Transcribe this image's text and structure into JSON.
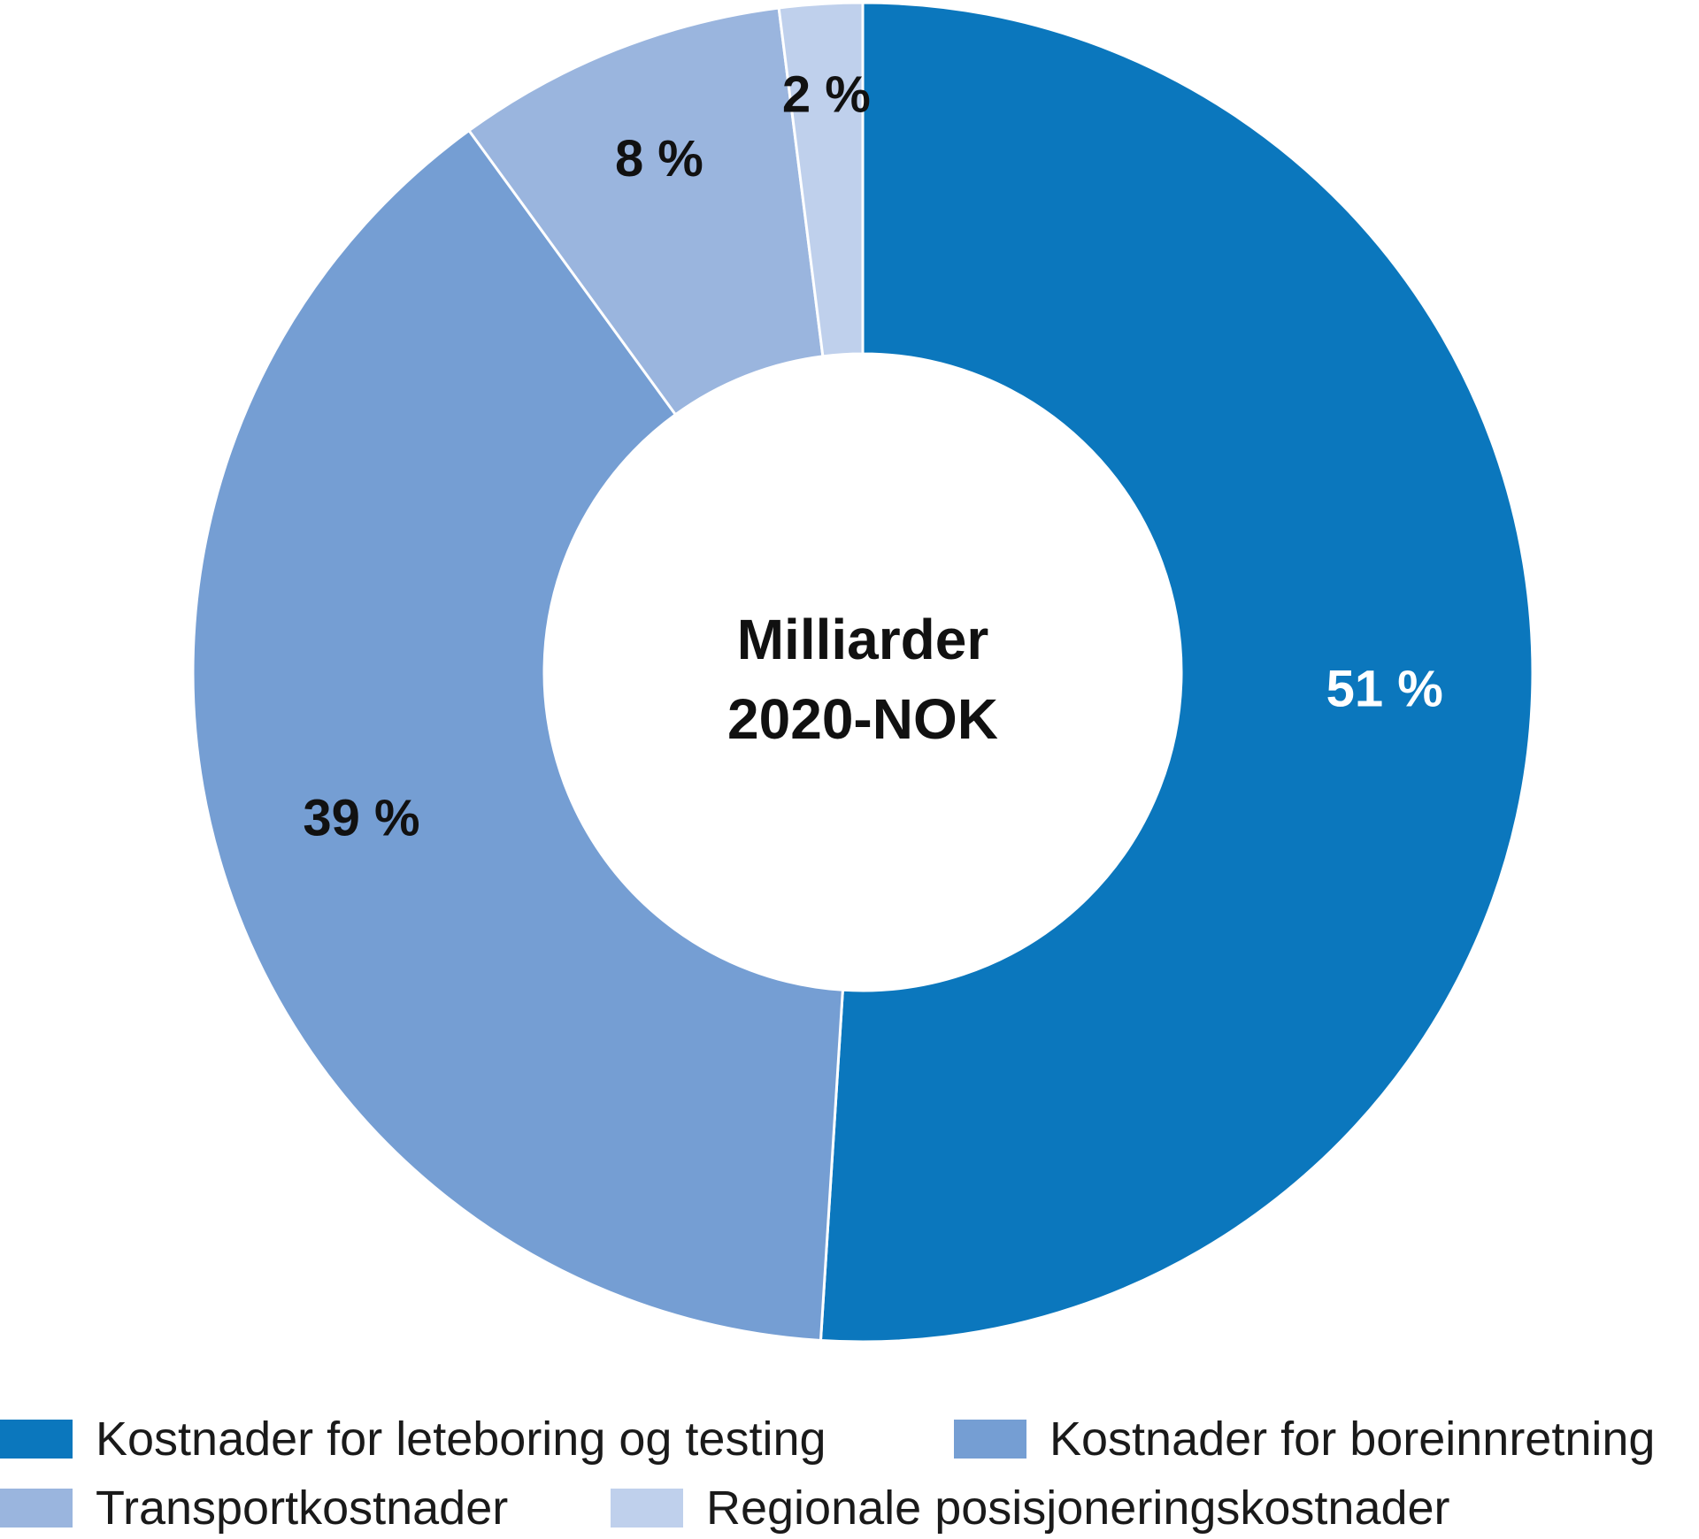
{
  "chart_data": {
    "type": "pie",
    "donut": true,
    "center_label_lines": [
      "Milliarder",
      "2020-NOK"
    ],
    "slices": [
      {
        "label": "Kostnader for leteboring og testing",
        "value": 51,
        "value_label": "51 %",
        "color": "#0b77bd",
        "label_color": "#ffffff"
      },
      {
        "label": "Kostnader for boreinnretning",
        "value": 39,
        "value_label": "39 %",
        "color": "#759ed3",
        "label_color": "#111111"
      },
      {
        "label": "Transportkostnader",
        "value": 8,
        "value_label": "8 %",
        "color": "#9ab5de",
        "label_color": "#111111"
      },
      {
        "label": "Regionale posisjoneringskostnader",
        "value": 2,
        "value_label": "2 %",
        "color": "#bfd0ec",
        "label_color": "#111111"
      }
    ],
    "legend_position": "bottom"
  }
}
